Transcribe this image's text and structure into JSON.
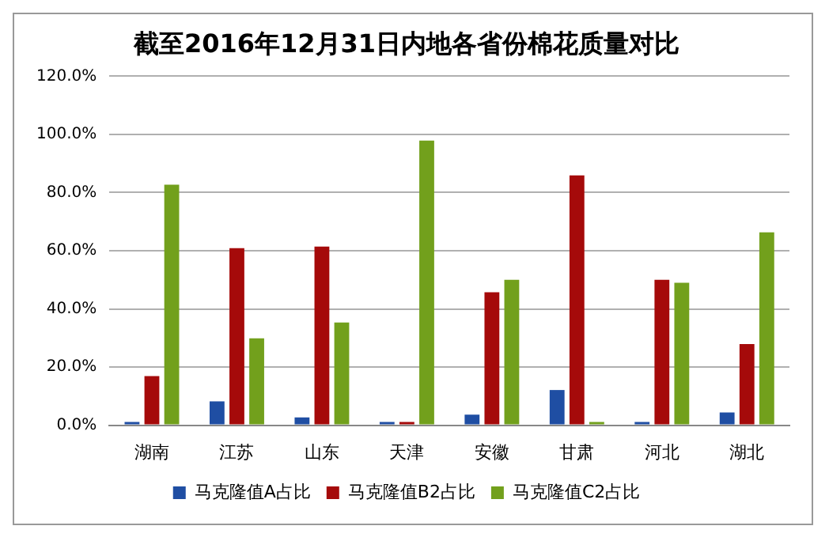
{
  "chart_data": {
    "type": "bar",
    "title": "截至2016年12月31日内地各省份棉花质量对比",
    "categories": [
      "湖南",
      "江苏",
      "山东",
      "天津",
      "安徽",
      "甘肃",
      "河北",
      "湖北"
    ],
    "series": [
      {
        "name": "马克隆值A占比",
        "color": "#1f4ea3",
        "values": [
          0.5,
          8.2,
          2.7,
          0.4,
          3.6,
          12.1,
          0.4,
          4.4
        ]
      },
      {
        "name": "马克隆值B2占比",
        "color": "#a50a0a",
        "values": [
          16.9,
          60.9,
          61.4,
          1.1,
          45.7,
          85.9,
          50,
          27.9
        ]
      },
      {
        "name": "马克隆值C2占比",
        "color": "#72a01c",
        "values": [
          82.7,
          29.9,
          35.3,
          97.9,
          50,
          1.1,
          49,
          66.3
        ]
      }
    ],
    "ylim": [
      0,
      120
    ],
    "yticks": [
      {
        "value": 0,
        "label": "0.0%"
      },
      {
        "value": 20,
        "label": "20.0%"
      },
      {
        "value": 40,
        "label": "40.0%"
      },
      {
        "value": 60,
        "label": "60.0%"
      },
      {
        "value": 80,
        "label": "80.0%"
      },
      {
        "value": 100,
        "label": "100.0%"
      },
      {
        "value": 120,
        "label": "120.0%"
      }
    ],
    "grid": "y",
    "legend": "bottom"
  }
}
